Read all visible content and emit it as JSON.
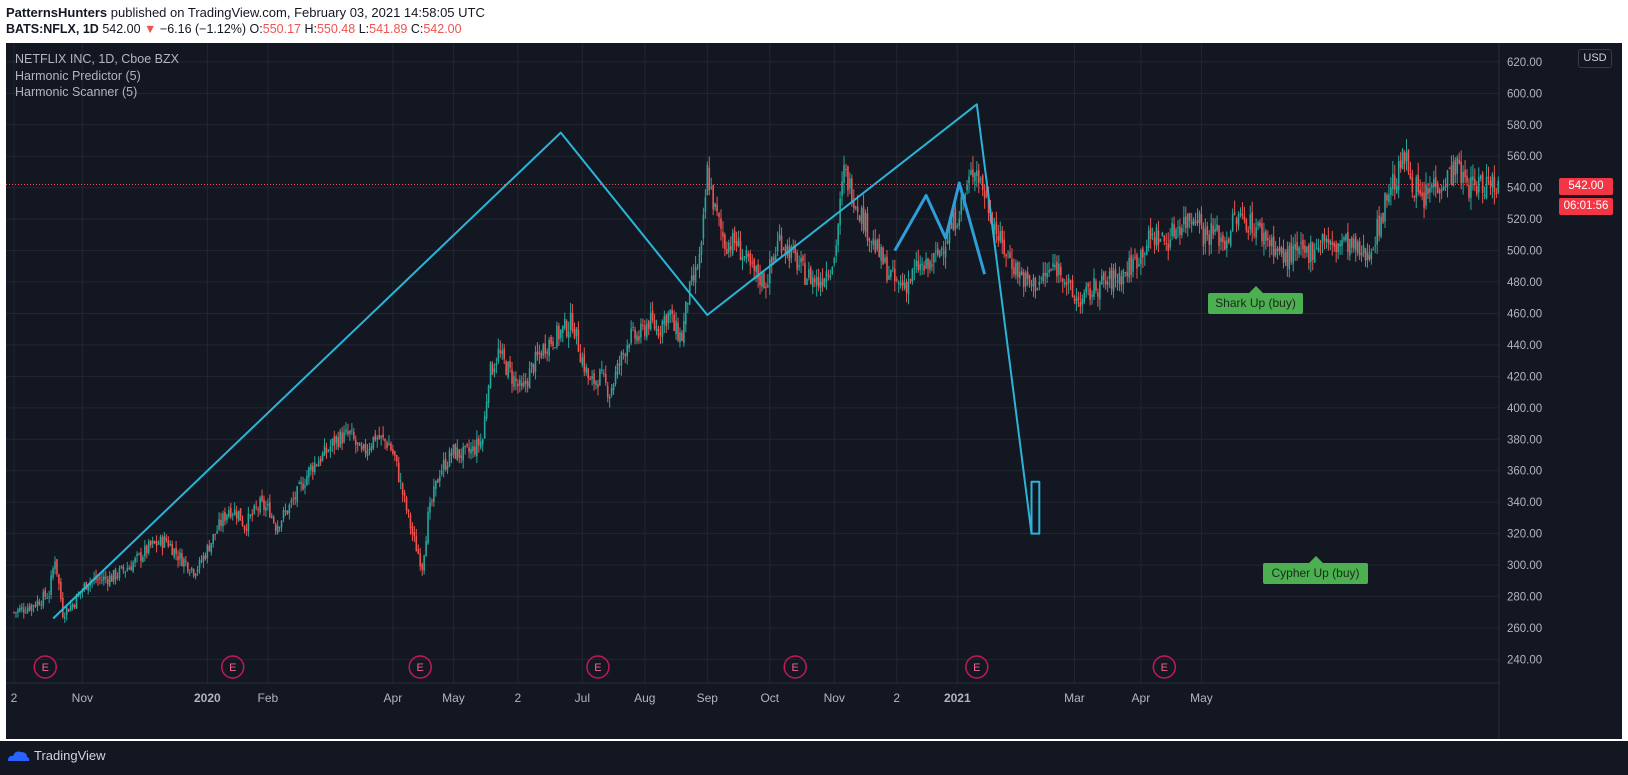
{
  "header": {
    "publisher": "PatternsHunters",
    "published_text": " published on TradingView.com, February 03, 2021 14:58:05 UTC",
    "symbol": "BATS:NFLX, 1D",
    "price": "542.00",
    "change_arrow": "▼",
    "change": "−6.16 (−1.12%)",
    "o_label": "O:",
    "o_value": "550.17",
    "h_label": "H:",
    "h_value": "550.48",
    "l_label": "L:",
    "l_value": "541.89",
    "c_label": "C:",
    "c_value": "542.00"
  },
  "legend": {
    "instrument": "NETFLIX INC, 1D, Cboe BZX",
    "indicator1": "Harmonic Predictor (5)",
    "indicator2": "Harmonic Scanner (5)"
  },
  "currency": "USD",
  "last_price_tag": "542.00",
  "countdown_tag": "06:01:56",
  "labels": {
    "shark": "Shark Up (buy)",
    "cypher": "Cypher Up (buy)"
  },
  "footer": {
    "brand": "TradingView"
  },
  "colors": {
    "background": "#131722",
    "grid": "#222631",
    "up": "#26a69a",
    "down": "#ef5350",
    "pattern_line": "#2bb3d8",
    "shark_line": "#2f9ed8",
    "label": "#4caf50"
  },
  "chart_data": {
    "type": "candlestick",
    "title": "NETFLIX INC, 1D, Cboe BZX",
    "ylim": [
      225,
      632
    ],
    "y_ticks": [
      240,
      260,
      280,
      300,
      320,
      340,
      360,
      380,
      400,
      420,
      440,
      460,
      480,
      500,
      520,
      540,
      560,
      580,
      600,
      620
    ],
    "x_ticks": [
      "2",
      "Nov",
      "2020",
      "Feb",
      "Apr",
      "May",
      "2",
      "Jul",
      "Aug",
      "Sep",
      "Oct",
      "Nov",
      "2",
      "2021",
      "Mar",
      "Apr",
      "May"
    ],
    "x_tick_index": [
      0,
      35,
      99,
      130,
      194,
      225,
      258,
      291,
      323,
      355,
      387,
      420,
      452,
      483,
      543,
      577,
      608
    ],
    "earnings_marker_index": [
      16,
      112,
      208,
      299,
      400,
      493,
      589
    ],
    "earnings_marker_text": "E",
    "close_path": [
      [
        0,
        270
      ],
      [
        10,
        275
      ],
      [
        18,
        282
      ],
      [
        21,
        305
      ],
      [
        25,
        270
      ],
      [
        30,
        275
      ],
      [
        38,
        290
      ],
      [
        50,
        292
      ],
      [
        60,
        300
      ],
      [
        70,
        312
      ],
      [
        78,
        316
      ],
      [
        84,
        306
      ],
      [
        92,
        297
      ],
      [
        95,
        300
      ],
      [
        103,
        320
      ],
      [
        110,
        336
      ],
      [
        115,
        333
      ],
      [
        118,
        325
      ],
      [
        126,
        338
      ],
      [
        131,
        335
      ],
      [
        134,
        325
      ],
      [
        140,
        335
      ],
      [
        145,
        345
      ],
      [
        152,
        362
      ],
      [
        160,
        372
      ],
      [
        165,
        380
      ],
      [
        172,
        383
      ],
      [
        178,
        370
      ],
      [
        185,
        382
      ],
      [
        192,
        377
      ],
      [
        195,
        368
      ],
      [
        200,
        340
      ],
      [
        205,
        315
      ],
      [
        209,
        300
      ],
      [
        212,
        330
      ],
      [
        218,
        360
      ],
      [
        225,
        372
      ],
      [
        230,
        370
      ],
      [
        235,
        373
      ],
      [
        240,
        380
      ],
      [
        243,
        420
      ],
      [
        248,
        435
      ],
      [
        255,
        420
      ],
      [
        260,
        410
      ],
      [
        265,
        425
      ],
      [
        272,
        440
      ],
      [
        280,
        448
      ],
      [
        286,
        455
      ],
      [
        290,
        435
      ],
      [
        295,
        415
      ],
      [
        300,
        420
      ],
      [
        305,
        410
      ],
      [
        310,
        428
      ],
      [
        315,
        445
      ],
      [
        320,
        445
      ],
      [
        325,
        455
      ],
      [
        330,
        450
      ],
      [
        333,
        457
      ],
      [
        336,
        460
      ],
      [
        338,
        450
      ],
      [
        342,
        445
      ],
      [
        345,
        470
      ],
      [
        349,
        485
      ],
      [
        352,
        500
      ],
      [
        355,
        550
      ],
      [
        359,
        525
      ],
      [
        364,
        505
      ],
      [
        370,
        505
      ],
      [
        377,
        488
      ],
      [
        385,
        480
      ],
      [
        392,
        508
      ],
      [
        398,
        498
      ],
      [
        405,
        485
      ],
      [
        412,
        480
      ],
      [
        420,
        495
      ],
      [
        425,
        550
      ],
      [
        430,
        535
      ],
      [
        435,
        520
      ],
      [
        440,
        505
      ],
      [
        446,
        490
      ],
      [
        452,
        478
      ],
      [
        458,
        480
      ],
      [
        463,
        490
      ],
      [
        467,
        488
      ],
      [
        472,
        495
      ],
      [
        480,
        515
      ],
      [
        486,
        532
      ],
      [
        492,
        555
      ],
      [
        496,
        540
      ],
      [
        500,
        525
      ],
      [
        505,
        505
      ],
      [
        510,
        495
      ],
      [
        515,
        485
      ],
      [
        520,
        478
      ],
      [
        525,
        480
      ],
      [
        533,
        490
      ],
      [
        537,
        487
      ],
      [
        542,
        470
      ],
      [
        547,
        468
      ],
      [
        554,
        477
      ],
      [
        560,
        480
      ],
      [
        568,
        485
      ],
      [
        575,
        495
      ],
      [
        580,
        505
      ],
      [
        585,
        510
      ],
      [
        590,
        505
      ],
      [
        595,
        515
      ],
      [
        601,
        520
      ],
      [
        606,
        525
      ],
      [
        609,
        510
      ],
      [
        615,
        512
      ],
      [
        620,
        505
      ],
      [
        625,
        520
      ],
      [
        631,
        520
      ],
      [
        638,
        512
      ],
      [
        644,
        505
      ],
      [
        650,
        495
      ],
      [
        655,
        498
      ],
      [
        658,
        498
      ],
      [
        662,
        498
      ],
      [
        668,
        505
      ],
      [
        671,
        509
      ],
      [
        675,
        500
      ],
      [
        680,
        506
      ],
      [
        684,
        503
      ],
      [
        688,
        499
      ],
      [
        692,
        497
      ],
      [
        695,
        503
      ],
      [
        700,
        520
      ],
      [
        704,
        540
      ],
      [
        708,
        546
      ],
      [
        712,
        560
      ],
      [
        716,
        545
      ],
      [
        721,
        530
      ],
      [
        727,
        543
      ],
      [
        733,
        545
      ],
      [
        738,
        554
      ],
      [
        741,
        548
      ],
      [
        745,
        541
      ],
      [
        752,
        542
      ],
      [
        756,
        545
      ],
      [
        760,
        542
      ]
    ],
    "pattern_lines": [
      {
        "name": "Cypher Up (buy)",
        "points": [
          [
            20,
            266
          ],
          [
            280,
            575
          ],
          [
            355,
            459
          ],
          [
            493,
            593
          ],
          [
            521,
            320
          ],
          [
            521,
            353
          ],
          [
            525,
            353
          ],
          [
            525,
            320
          ],
          [
            521,
            320
          ]
        ]
      },
      {
        "name": "Shark Up (buy)",
        "points": [
          [
            451,
            500
          ],
          [
            467,
            535
          ],
          [
            477,
            508
          ],
          [
            484,
            543
          ],
          [
            497,
            485
          ]
        ]
      }
    ]
  }
}
